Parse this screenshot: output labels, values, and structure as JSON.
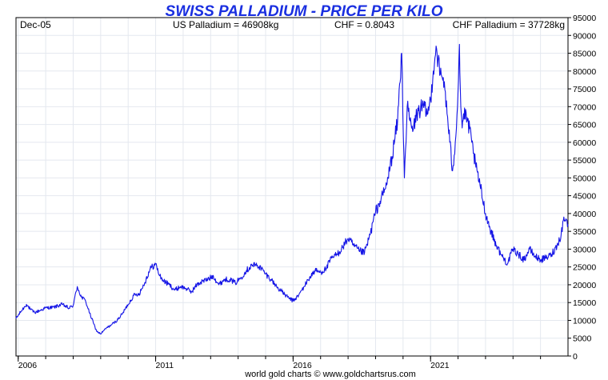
{
  "chart_data": {
    "type": "line",
    "title": "SWISS PALLADIUM - PRICE PER KILO",
    "header": {
      "left": "Dec-05",
      "us_price": "US Palladium = 46908kg",
      "fx_rate": "CHF = 0.8043",
      "chf_price": "CHF Palladium = 37728kg"
    },
    "footer": "world gold charts © www.goldchartsrus.com",
    "xlabel": "",
    "ylabel": "",
    "xlim": [
      2005.92,
      2026.0
    ],
    "ylim": [
      0,
      95000
    ],
    "y_ticks": [
      0,
      5000,
      10000,
      15000,
      20000,
      25000,
      30000,
      35000,
      40000,
      45000,
      50000,
      55000,
      60000,
      65000,
      70000,
      75000,
      80000,
      85000,
      90000,
      95000
    ],
    "x_ticks": [
      {
        "value": 2006,
        "label": "2006"
      },
      {
        "value": 2011,
        "label": "2011"
      },
      {
        "value": 2016,
        "label": "2016"
      },
      {
        "value": 2021,
        "label": "2021"
      }
    ],
    "grid": true,
    "line_color": "#1414e6",
    "series": [
      {
        "name": "",
        "x": [
          2005.92,
          2006.1,
          2006.3,
          2006.45,
          2006.6,
          2006.8,
          2007.0,
          2007.3,
          2007.6,
          2007.85,
          2008.0,
          2008.15,
          2008.3,
          2008.45,
          2008.6,
          2008.75,
          2008.85,
          2009.0,
          2009.2,
          2009.4,
          2009.6,
          2009.8,
          2010.0,
          2010.2,
          2010.4,
          2010.6,
          2010.8,
          2011.0,
          2011.15,
          2011.3,
          2011.5,
          2011.7,
          2011.9,
          2012.1,
          2012.3,
          2012.5,
          2012.7,
          2012.9,
          2013.1,
          2013.3,
          2013.5,
          2013.7,
          2013.9,
          2014.1,
          2014.3,
          2014.5,
          2014.7,
          2014.85,
          2015.0,
          2015.2,
          2015.4,
          2015.6,
          2015.8,
          2016.0,
          2016.2,
          2016.4,
          2016.6,
          2016.8,
          2017.0,
          2017.2,
          2017.4,
          2017.6,
          2017.8,
          2018.0,
          2018.2,
          2018.4,
          2018.6,
          2018.8,
          2019.0,
          2019.2,
          2019.4,
          2019.6,
          2019.8,
          2019.95,
          2020.05,
          2020.15,
          2020.25,
          2020.35,
          2020.5,
          2020.7,
          2020.9,
          2021.0,
          2021.1,
          2021.2,
          2021.35,
          2021.5,
          2021.6,
          2021.7,
          2021.8,
          2021.9,
          2022.0,
          2022.05,
          2022.1,
          2022.15,
          2022.2,
          2022.35,
          2022.5,
          2022.65,
          2022.8,
          2023.0,
          2023.2,
          2023.4,
          2023.6,
          2023.8,
          2024.0,
          2024.2,
          2024.4,
          2024.6,
          2024.8,
          2025.0,
          2025.2,
          2025.4,
          2025.6,
          2025.75,
          2025.85,
          2026.0
        ],
        "values": [
          10500,
          12500,
          14500,
          13000,
          12200,
          12800,
          13500,
          13700,
          14500,
          13400,
          14200,
          19500,
          16500,
          15500,
          12000,
          9000,
          7000,
          6200,
          7800,
          8800,
          10000,
          12000,
          14500,
          17000,
          17500,
          20500,
          24500,
          25800,
          22500,
          21000,
          20000,
          18500,
          19500,
          19000,
          18000,
          20000,
          21000,
          21500,
          22500,
          20000,
          21500,
          21500,
          20500,
          22000,
          24000,
          25500,
          25500,
          24500,
          23000,
          21500,
          19500,
          18000,
          16500,
          15500,
          17000,
          19500,
          22000,
          24000,
          23500,
          24500,
          27500,
          28500,
          30500,
          33000,
          31000,
          29500,
          29000,
          34000,
          40500,
          44000,
          48000,
          56000,
          66000,
          85000,
          50000,
          70000,
          66000,
          63000,
          68000,
          70000,
          68000,
          72000,
          80000,
          87000,
          79000,
          77000,
          68000,
          60000,
          52000,
          60000,
          74000,
          87500,
          70000,
          64000,
          68000,
          66000,
          60000,
          53000,
          48000,
          40000,
          35000,
          31000,
          28000,
          26000,
          30000,
          28500,
          27000,
          30000,
          28000,
          27000,
          27500,
          28500,
          31000,
          34000,
          39000,
          37000
        ]
      }
    ]
  }
}
